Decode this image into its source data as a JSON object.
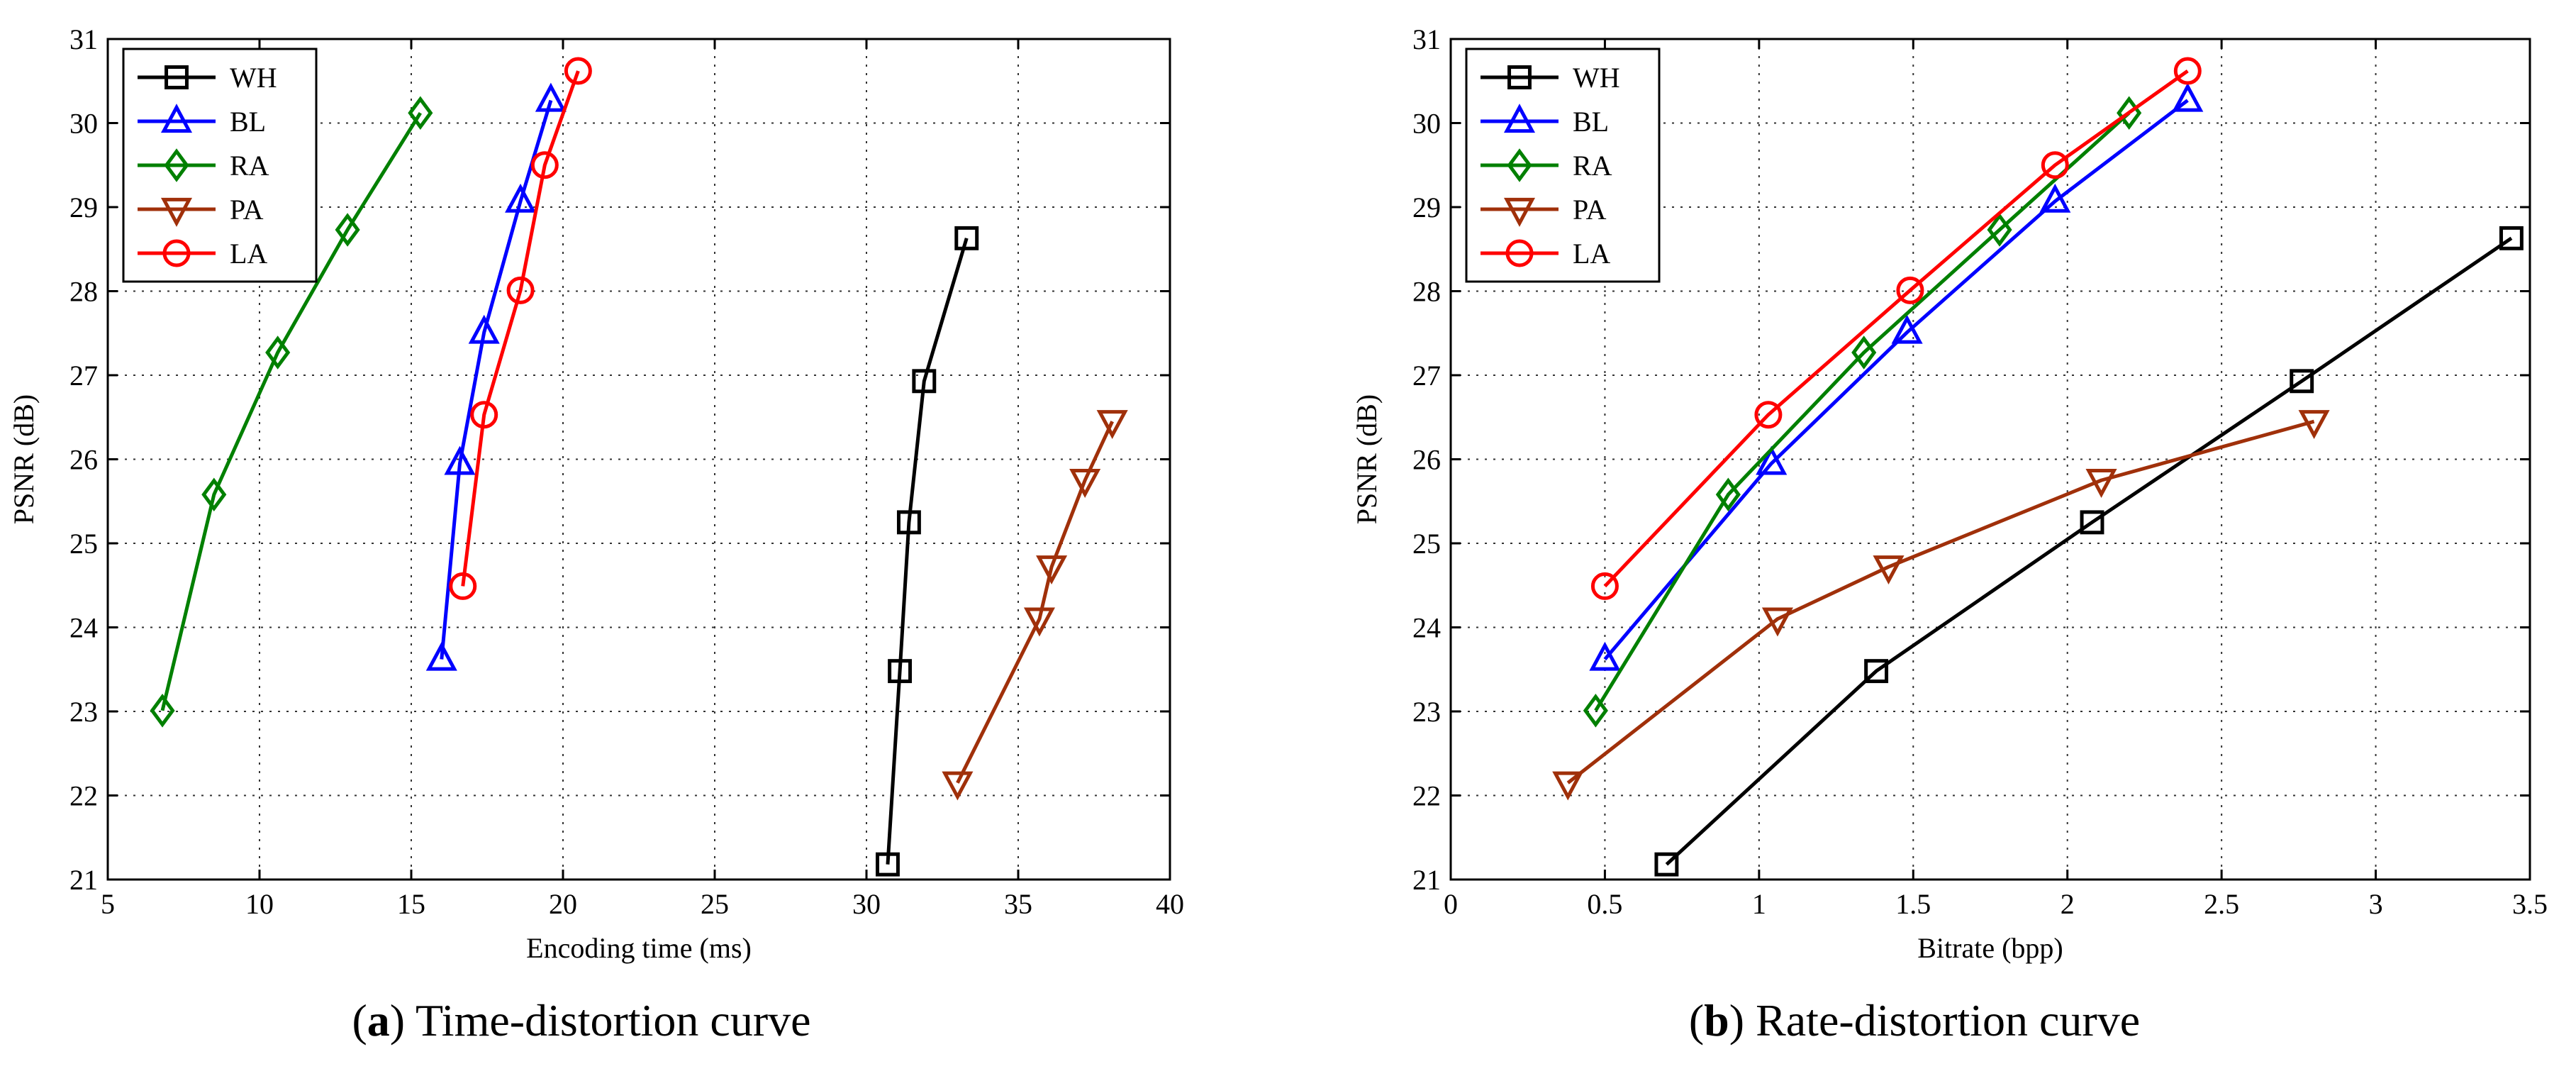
{
  "chart_data": [
    {
      "type": "line",
      "panel": "a",
      "caption_prefix": "(a)",
      "caption_letter": "a",
      "caption_text": "Time-distortion curve",
      "xlabel": "Encoding time (ms)",
      "ylabel": "PSNR (dB)",
      "xlim": [
        5,
        40
      ],
      "ylim": [
        21,
        31
      ],
      "xticks": [
        5,
        10,
        15,
        20,
        25,
        30,
        35,
        40
      ],
      "yticks": [
        21,
        22,
        23,
        24,
        25,
        26,
        27,
        28,
        29,
        30,
        31
      ],
      "grid": true,
      "legend_position": "top-left",
      "series": [
        {
          "name": "WH",
          "color": "#000000",
          "marker": "square",
          "points": [
            [
              30.7,
              21.18
            ],
            [
              31.1,
              23.48
            ],
            [
              31.4,
              25.25
            ],
            [
              31.9,
              26.93
            ],
            [
              33.3,
              28.63
            ]
          ]
        },
        {
          "name": "BL",
          "color": "#0000ff",
          "marker": "triangle-up",
          "points": [
            [
              16.0,
              23.62
            ],
            [
              16.6,
              25.95
            ],
            [
              17.4,
              27.51
            ],
            [
              18.6,
              29.07
            ],
            [
              19.6,
              30.27
            ]
          ]
        },
        {
          "name": "RA",
          "color": "#008000",
          "marker": "diamond",
          "points": [
            [
              6.8,
              23.01
            ],
            [
              8.5,
              25.58
            ],
            [
              10.6,
              27.27
            ],
            [
              12.9,
              28.73
            ],
            [
              15.3,
              30.12
            ]
          ]
        },
        {
          "name": "PA",
          "color": "#a0300a",
          "marker": "triangle-down",
          "points": [
            [
              33.0,
              22.15
            ],
            [
              35.7,
              24.1
            ],
            [
              36.1,
              24.72
            ],
            [
              37.2,
              25.75
            ],
            [
              38.1,
              26.45
            ]
          ]
        },
        {
          "name": "LA",
          "color": "#ff0000",
          "marker": "circle",
          "points": [
            [
              16.7,
              24.49
            ],
            [
              17.4,
              26.53
            ],
            [
              18.6,
              28.01
            ],
            [
              19.4,
              29.5
            ],
            [
              20.5,
              30.62
            ]
          ]
        }
      ]
    },
    {
      "type": "line",
      "panel": "b",
      "caption_prefix": "(b)",
      "caption_letter": "b",
      "caption_text": "Rate-distortion curve",
      "xlabel": "Bitrate (bpp)",
      "ylabel": "PSNR (dB)",
      "xlim": [
        0,
        3.5
      ],
      "ylim": [
        21,
        31
      ],
      "xticks": [
        0,
        0.5,
        1,
        1.5,
        2,
        2.5,
        3,
        3.5
      ],
      "yticks": [
        21,
        22,
        23,
        24,
        25,
        26,
        27,
        28,
        29,
        30,
        31
      ],
      "grid": true,
      "legend_position": "top-left",
      "series": [
        {
          "name": "WH",
          "color": "#000000",
          "marker": "square",
          "points": [
            [
              0.7,
              21.18
            ],
            [
              1.38,
              23.48
            ],
            [
              2.08,
              25.25
            ],
            [
              2.76,
              26.93
            ],
            [
              3.44,
              28.63
            ]
          ]
        },
        {
          "name": "BL",
          "color": "#0000ff",
          "marker": "triangle-up",
          "points": [
            [
              0.5,
              23.62
            ],
            [
              1.04,
              25.95
            ],
            [
              1.48,
              27.51
            ],
            [
              1.96,
              29.07
            ],
            [
              2.39,
              30.27
            ]
          ]
        },
        {
          "name": "RA",
          "color": "#008000",
          "marker": "diamond",
          "points": [
            [
              0.47,
              23.01
            ],
            [
              0.9,
              25.58
            ],
            [
              1.34,
              27.27
            ],
            [
              1.78,
              28.73
            ],
            [
              2.2,
              30.12
            ]
          ]
        },
        {
          "name": "PA",
          "color": "#a0300a",
          "marker": "triangle-down",
          "points": [
            [
              0.38,
              22.15
            ],
            [
              1.06,
              24.1
            ],
            [
              1.42,
              24.72
            ],
            [
              2.11,
              25.75
            ],
            [
              2.8,
              26.45
            ]
          ]
        },
        {
          "name": "LA",
          "color": "#ff0000",
          "marker": "circle",
          "points": [
            [
              0.5,
              24.49
            ],
            [
              1.03,
              26.53
            ],
            [
              1.49,
              28.01
            ],
            [
              1.96,
              29.5
            ],
            [
              2.39,
              30.62
            ]
          ]
        }
      ]
    }
  ]
}
